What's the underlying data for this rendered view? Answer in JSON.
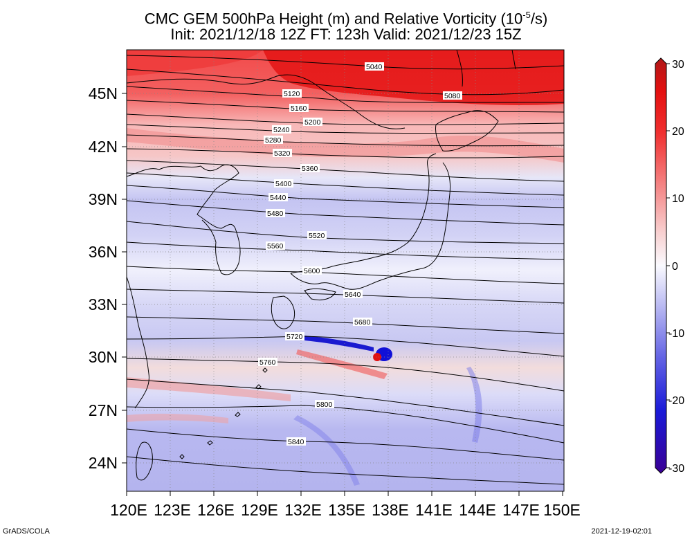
{
  "title": {
    "line1": "CMC GEM 500hPa Height (m) and Relative Vorticity (10",
    "line1_sup": "-5",
    "line1_end": "/s)",
    "line2": "Init: 2021/12/18 12Z  FT: 123h  Valid: 2021/12/23 15Z"
  },
  "axes": {
    "x_ticks": [
      "120E",
      "123E",
      "126E",
      "129E",
      "132E",
      "135E",
      "138E",
      "141E",
      "144E",
      "147E",
      "150E"
    ],
    "y_ticks": [
      "45N",
      "42N",
      "39N",
      "36N",
      "33N",
      "30N",
      "27N",
      "24N"
    ],
    "lon_range": [
      120,
      150
    ],
    "lat_range": [
      22.5,
      47.5
    ]
  },
  "colorbar": {
    "ticks": [
      "30",
      "20",
      "10",
      "0",
      "-10",
      "-20",
      "-30"
    ],
    "range": [
      -30,
      30
    ],
    "colors": [
      "#3a0094",
      "#1414d6",
      "#5a5ae6",
      "#a8a8f0",
      "#f2f2fc",
      "#f8c8c8",
      "#f06060",
      "#e01010",
      "#c81818"
    ]
  },
  "contours": {
    "interval": 40,
    "labels": [
      "5040",
      "5080",
      "5120",
      "5160",
      "5200",
      "5240",
      "5280",
      "5320",
      "5360",
      "5400",
      "5440",
      "5480",
      "5520",
      "5560",
      "5600",
      "5640",
      "5680",
      "5720",
      "5760",
      "5800",
      "5840"
    ]
  },
  "footer": {
    "left": "GrADS/COLA",
    "right": "2021-12-19-02:01"
  }
}
